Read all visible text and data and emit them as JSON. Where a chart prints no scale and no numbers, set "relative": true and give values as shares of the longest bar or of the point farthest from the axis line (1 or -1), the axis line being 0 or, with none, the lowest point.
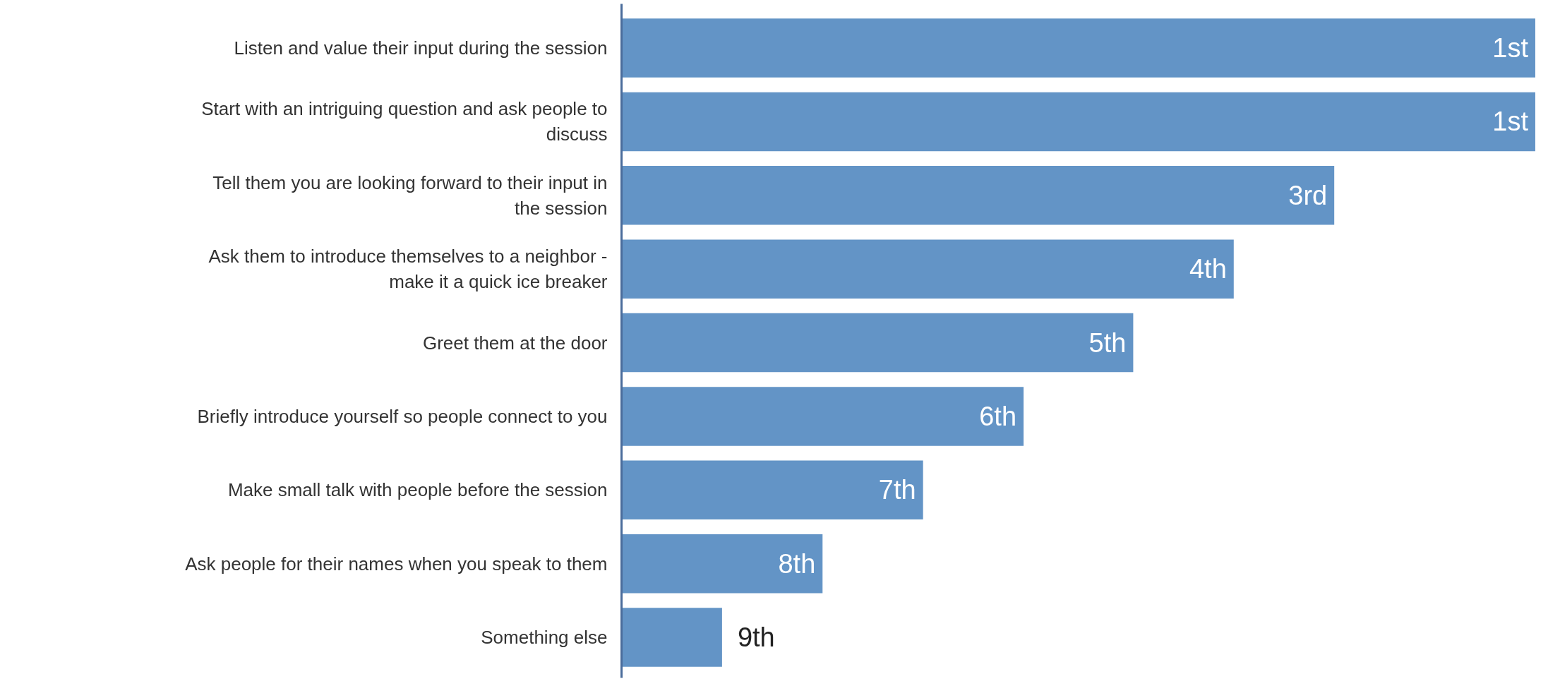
{
  "chart_data": {
    "type": "bar",
    "orientation": "horizontal",
    "relative": true,
    "categories": [
      "Listen and value their input during the session",
      "Start with an intriguing question and ask people to discuss",
      "Tell them you are looking forward to their input in the session",
      "Ask them to introduce themselves to a neighbor - make it a quick ice breaker",
      "Greet them at the door",
      "Briefly introduce yourself so people connect to you",
      "Make small talk with people before the session",
      "Ask people for their names when you speak to them",
      "Something else"
    ],
    "values": [
      1,
      1,
      0.78,
      0.67,
      0.56,
      0.44,
      0.33,
      0.22,
      0.11
    ],
    "annotations": [
      {
        "text": "1st",
        "x": 1,
        "y": "Listen and value their input during the session"
      },
      {
        "text": "1st",
        "x": 1,
        "y": "Start with an intriguing question and ask people to discuss"
      },
      {
        "text": "3rd",
        "x": 0.78,
        "y": "Tell them you are looking forward to their input in the session"
      },
      {
        "text": "4th",
        "x": 0.67,
        "y": "Ask them to introduce themselves to a neighbor - make it a quick ice breaker"
      },
      {
        "text": "5th",
        "x": 0.56,
        "y": "Greet them at the door"
      },
      {
        "text": "6th",
        "x": 0.44,
        "y": "Briefly introduce yourself so people connect to you"
      },
      {
        "text": "7th",
        "x": 0.33,
        "y": "Make small talk with people before the session"
      },
      {
        "text": "8th",
        "x": 0.22,
        "y": "Ask people for their names when you speak to them"
      },
      {
        "text": "9th",
        "x": 0.11,
        "y": "Something else"
      }
    ],
    "color": "#6394c6",
    "grid": false
  }
}
